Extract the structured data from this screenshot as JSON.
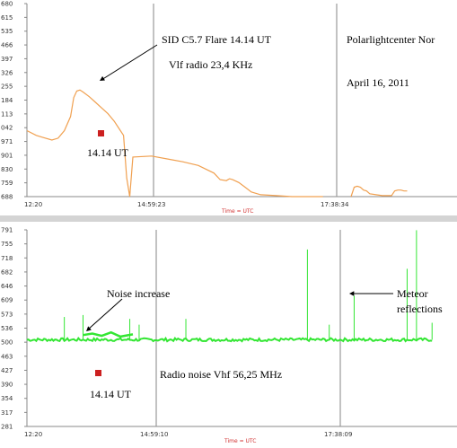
{
  "colors": {
    "top_line": "#f0a050",
    "bottom_line": "#33e633",
    "marker": "#cc2020",
    "gridline": "#9a9a9a",
    "axis_label": "#d03030"
  },
  "chart_data": [
    {
      "type": "line",
      "y_ticks": [
        "680",
        "615",
        "535",
        "466",
        "397",
        "326",
        "255",
        "184",
        "113",
        "042",
        "971",
        "901",
        "830",
        "759",
        "688"
      ],
      "x_ticks": [
        "12:20",
        "14:59:23",
        "17:38:34"
      ],
      "xlabel": "Time = UTC",
      "ylabel": "",
      "title": "",
      "annotations": {
        "flare": "SID C5.7 Flare  14.14 UT",
        "station": "Polarlightcenter Nor",
        "radio": "Vlf radio 23,4 KHz",
        "date": "April 16, 2011",
        "marker": "14.14 UT"
      },
      "series": [
        {
          "x": [
            0,
            3,
            5,
            8,
            10,
            12,
            14,
            15,
            16,
            17,
            18,
            20,
            22,
            24,
            26,
            28,
            30,
            31,
            32,
            33,
            34,
            40,
            45,
            50,
            55,
            60,
            62,
            64,
            65,
            66,
            68,
            70,
            72,
            75,
            80,
            85,
            90,
            95
          ],
          "y": [
            7,
            6.5,
            6.3,
            6,
            6.2,
            7,
            8.5,
            10.5,
            11.2,
            11.3,
            11.1,
            10.6,
            10,
            9.4,
            8.8,
            8,
            7,
            6.5,
            2,
            0,
            4.2,
            4.3,
            4,
            3.7,
            3.3,
            2.5,
            1.8,
            1.7,
            1.9,
            1.8,
            1.5,
            1,
            0.5,
            0.2,
            0.1,
            0,
            0,
            0
          ]
        },
        {
          "x": [
            104,
            105,
            106,
            107,
            108,
            109,
            110,
            112,
            114,
            117,
            118,
            119,
            120,
            121,
            122
          ],
          "y": [
            0,
            1,
            1.1,
            1,
            0.7,
            0.6,
            0.3,
            0.2,
            0.1,
            0.1,
            0.6,
            0.7,
            0.7,
            0.6,
            0.6
          ]
        }
      ]
    },
    {
      "type": "line",
      "y_ticks": [
        "791",
        "755",
        "718",
        "682",
        "646",
        "609",
        "573",
        "536",
        "500",
        "463",
        "427",
        "390",
        "354",
        "317",
        "281"
      ],
      "x_ticks": [
        "12:20",
        "14:59:10",
        "17:38:09"
      ],
      "xlabel": "Time = UTC",
      "ylabel": "",
      "title": "",
      "annotations": {
        "noise": "Noise increase",
        "meteor_line1": "Meteor",
        "meteor_line2": "reflections",
        "radio": "Radio noise Vhf 56,25 MHz",
        "marker": "14.14 UT"
      },
      "baseline": 506,
      "spikes": [
        {
          "x": 12,
          "y": 565
        },
        {
          "x": 18,
          "y": 570
        },
        {
          "x": 33,
          "y": 560
        },
        {
          "x": 36,
          "y": 545
        },
        {
          "x": 51,
          "y": 560
        },
        {
          "x": 90,
          "y": 740
        },
        {
          "x": 97,
          "y": 545
        },
        {
          "x": 105,
          "y": 620
        },
        {
          "x": 122,
          "y": 690
        },
        {
          "x": 125,
          "y": 790
        },
        {
          "x": 130,
          "y": 550
        }
      ],
      "bumps": [
        {
          "x": 18,
          "y": 518
        },
        {
          "x": 21,
          "y": 522
        },
        {
          "x": 24,
          "y": 516
        },
        {
          "x": 27,
          "y": 525
        },
        {
          "x": 30,
          "y": 514
        },
        {
          "x": 34,
          "y": 520
        }
      ],
      "x_range": [
        0,
        138
      ]
    }
  ]
}
